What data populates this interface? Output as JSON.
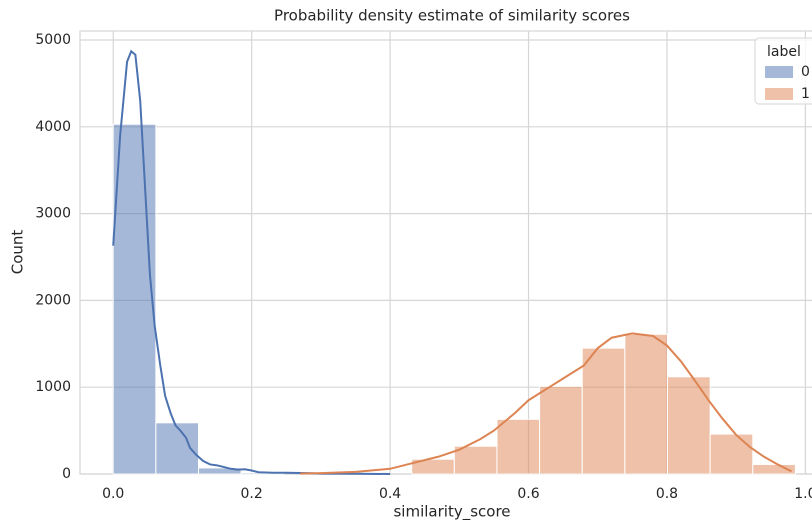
{
  "chart_data": {
    "type": "histogram",
    "title": "Probability density estimate of similarity scores",
    "xlabel": "similarity_score",
    "ylabel": "Count",
    "bins": [
      0,
      0.0616,
      0.1232,
      0.1848,
      0.2464,
      0.308,
      0.3696,
      0.4312,
      0.4928,
      0.5544,
      0.616,
      0.6776,
      0.7392,
      0.8008,
      0.8624,
      0.924,
      0.9856
    ],
    "series": [
      {
        "name": "0",
        "color": "#4c72b0",
        "values": [
          4030,
          590,
          70,
          15,
          0,
          0,
          0,
          0,
          0,
          0,
          0,
          0,
          0,
          0,
          0,
          0
        ],
        "kde": {
          "x": [
            0,
            0.01,
            0.02,
            0.026,
            0.032,
            0.039,
            0.046,
            0.053,
            0.06,
            0.068,
            0.075,
            0.083,
            0.09,
            0.097,
            0.105,
            0.111,
            0.12,
            0.13,
            0.14,
            0.15,
            0.16,
            0.17,
            0.18,
            0.19,
            0.2,
            0.21,
            0.23,
            0.25,
            0.28,
            0.3,
            0.35,
            0.4
          ],
          "values": [
            2630,
            3900,
            4750,
            4870,
            4830,
            4300,
            3300,
            2300,
            1700,
            1250,
            900,
            700,
            560,
            500,
            420,
            300,
            220,
            150,
            110,
            100,
            80,
            60,
            50,
            55,
            40,
            20,
            15,
            15,
            10,
            5,
            3,
            0
          ]
        }
      },
      {
        "name": "1",
        "color": "#dd8452",
        "values": [
          0,
          0,
          0,
          0,
          0,
          0,
          0,
          170,
          320,
          630,
          1010,
          1450,
          1610,
          1120,
          460,
          110
        ],
        "kde": {
          "x": [
            0.27,
            0.3,
            0.35,
            0.4,
            0.43,
            0.47,
            0.5,
            0.53,
            0.55,
            0.58,
            0.6,
            0.63,
            0.65,
            0.68,
            0.7,
            0.72,
            0.75,
            0.78,
            0.8,
            0.82,
            0.84,
            0.86,
            0.88,
            0.9,
            0.92,
            0.94,
            0.96,
            0.98
          ],
          "values": [
            5,
            10,
            25,
            60,
            120,
            200,
            280,
            400,
            500,
            700,
            850,
            1000,
            1100,
            1250,
            1450,
            1570,
            1620,
            1590,
            1480,
            1300,
            1080,
            850,
            640,
            450,
            310,
            200,
            110,
            30
          ]
        }
      }
    ],
    "legend_title": "label",
    "legend": "upper right",
    "xlim": [
      -0.048,
      1.05
    ],
    "ylim": [
      0,
      5104
    ],
    "xticks": [
      {
        "value": 0,
        "label": "0.0"
      },
      0.2,
      0.4,
      0.6,
      0.8,
      {
        "value": 1,
        "label": "1.0"
      }
    ],
    "yticks": [
      0,
      1000,
      2000,
      3000,
      4000,
      5000
    ],
    "grid": true
  }
}
